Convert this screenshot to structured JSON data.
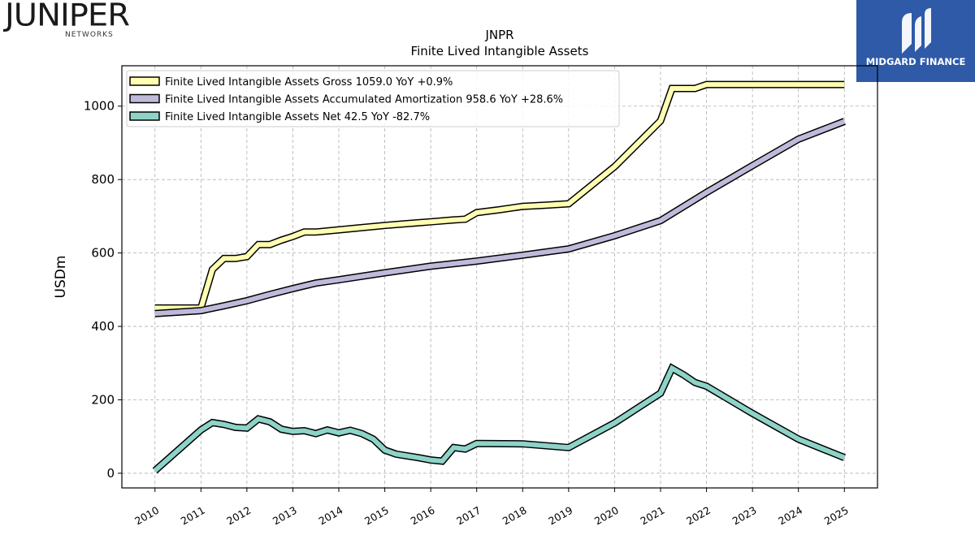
{
  "logos": {
    "left_wordmark": "JUNIPER",
    "left_subtext": "NETWORKS",
    "right_wordmark": "MIDGARD FINANCE",
    "right_bg_color": "#2e5aa8"
  },
  "chart_data": {
    "type": "line",
    "title": "JNPR",
    "subtitle": "Finite Lived Intangible Assets",
    "ylabel": "USDm",
    "xlabel": "",
    "ylim": [
      -40,
      1110
    ],
    "xlim": [
      2009.28,
      2025.72
    ],
    "yticks": [
      0,
      200,
      400,
      600,
      800,
      1000
    ],
    "xticks": [
      "2010",
      "2011",
      "2012",
      "2013",
      "2014",
      "2015",
      "2016",
      "2017",
      "2018",
      "2019",
      "2020",
      "2021",
      "2022",
      "2023",
      "2024",
      "2025"
    ],
    "grid": true,
    "legend_position": "top-left",
    "series": [
      {
        "name": "Finite Lived Intangible Assets Gross  1059.0 YoY +0.9%",
        "color": "#ffffb3",
        "points": [
          [
            2010.0,
            450
          ],
          [
            2010.5,
            450
          ],
          [
            2011.0,
            450
          ],
          [
            2011.25,
            555
          ],
          [
            2011.5,
            585
          ],
          [
            2011.75,
            585
          ],
          [
            2012.0,
            590
          ],
          [
            2012.25,
            623
          ],
          [
            2012.5,
            623
          ],
          [
            2012.75,
            635
          ],
          [
            2013.0,
            645
          ],
          [
            2013.25,
            657
          ],
          [
            2013.5,
            657
          ],
          [
            2014.0,
            663
          ],
          [
            2014.5,
            669
          ],
          [
            2015.0,
            675
          ],
          [
            2015.5,
            680
          ],
          [
            2016.0,
            685
          ],
          [
            2016.5,
            690
          ],
          [
            2016.75,
            692
          ],
          [
            2017.0,
            710
          ],
          [
            2017.5,
            718
          ],
          [
            2018.0,
            727
          ],
          [
            2018.5,
            730
          ],
          [
            2019.0,
            734
          ],
          [
            2020.0,
            835
          ],
          [
            2021.0,
            960
          ],
          [
            2021.25,
            1048
          ],
          [
            2021.5,
            1048
          ],
          [
            2021.75,
            1048
          ],
          [
            2022.0,
            1059
          ],
          [
            2023.0,
            1059
          ],
          [
            2024.0,
            1059
          ],
          [
            2025.0,
            1059
          ]
        ]
      },
      {
        "name": "Finite Lived Intangible Assets Accumulated Amortization  958.6 YoY +28.6%",
        "color": "#bebada",
        "points": [
          [
            2010.0,
            435
          ],
          [
            2011.0,
            443
          ],
          [
            2011.5,
            456
          ],
          [
            2012.0,
            470
          ],
          [
            2012.5,
            487
          ],
          [
            2013.0,
            503
          ],
          [
            2013.5,
            518
          ],
          [
            2014.0,
            527
          ],
          [
            2015.0,
            546
          ],
          [
            2016.0,
            564
          ],
          [
            2017.0,
            578
          ],
          [
            2018.0,
            594
          ],
          [
            2019.0,
            611
          ],
          [
            2020.0,
            647
          ],
          [
            2021.0,
            688
          ],
          [
            2022.0,
            765
          ],
          [
            2023.0,
            838
          ],
          [
            2024.0,
            910
          ],
          [
            2025.0,
            958.6
          ]
        ]
      },
      {
        "name": "Finite Lived Intangible Assets Net  42.5 YoY -82.7%",
        "color": "#8dd3c7",
        "points": [
          [
            2010.0,
            7
          ],
          [
            2011.0,
            118
          ],
          [
            2011.25,
            138
          ],
          [
            2011.5,
            133
          ],
          [
            2011.75,
            125
          ],
          [
            2012.0,
            123
          ],
          [
            2012.25,
            148
          ],
          [
            2012.5,
            140
          ],
          [
            2012.75,
            120
          ],
          [
            2013.0,
            114
          ],
          [
            2013.25,
            116
          ],
          [
            2013.5,
            108
          ],
          [
            2013.75,
            118
          ],
          [
            2014.0,
            110
          ],
          [
            2014.25,
            117
          ],
          [
            2014.5,
            108
          ],
          [
            2014.75,
            93
          ],
          [
            2015.0,
            63
          ],
          [
            2015.25,
            52
          ],
          [
            2015.75,
            42
          ],
          [
            2016.0,
            36
          ],
          [
            2016.25,
            33
          ],
          [
            2016.5,
            70
          ],
          [
            2016.75,
            66
          ],
          [
            2017.0,
            81
          ],
          [
            2018.0,
            80
          ],
          [
            2019.0,
            70
          ],
          [
            2020.0,
            137
          ],
          [
            2021.0,
            218
          ],
          [
            2021.25,
            286
          ],
          [
            2021.5,
            268
          ],
          [
            2021.75,
            247
          ],
          [
            2022.0,
            237
          ],
          [
            2023.0,
            163
          ],
          [
            2024.0,
            93
          ],
          [
            2025.0,
            42.5
          ]
        ]
      }
    ]
  }
}
